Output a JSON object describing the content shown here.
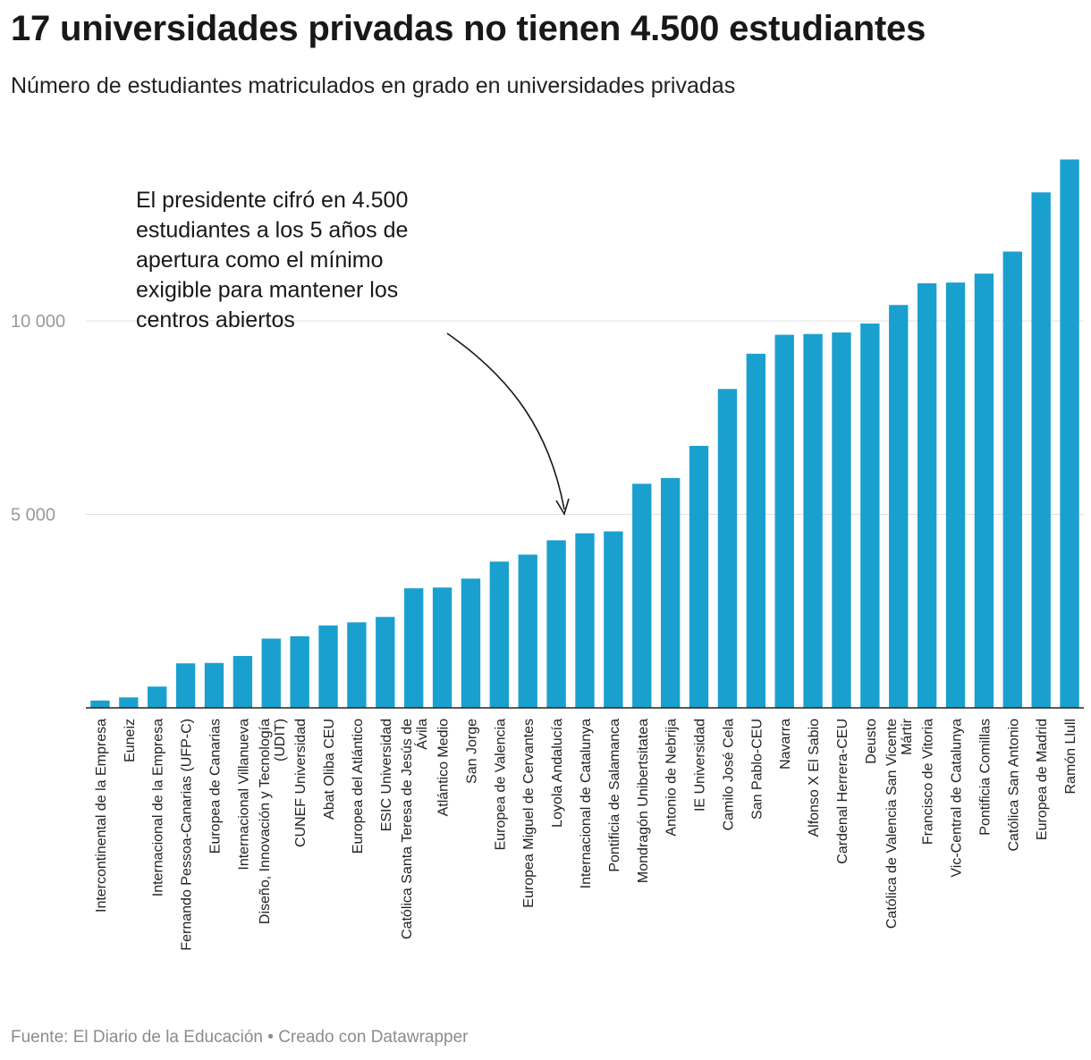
{
  "title": "17 universidades privadas no tienen 4.500 estudiantes",
  "subtitle": "Número de estudiantes matriculados en grado en universidades privadas",
  "footer": "Fuente: El Diario de la Educación • Creado con Datawrapper",
  "colors": {
    "bar": "#1aa0cf",
    "grid": "#e1e1e1",
    "axis": "#222222",
    "tick": "#9a9a9a"
  },
  "chart_data": {
    "type": "bar",
    "title": "17 universidades privadas no tienen 4.500 estudiantes",
    "xlabel": "",
    "ylabel": "",
    "ylim": [
      0,
      14700
    ],
    "grid": true,
    "yticks": [
      5000,
      10000
    ],
    "ytick_labels": [
      "5 000",
      "10 000"
    ],
    "categories": [
      [
        "Intercontinental de la Empresa"
      ],
      [
        "Euneiz"
      ],
      [
        "Internacional de la Empresa"
      ],
      [
        "Fernando Pessoa-Canarias (UFP-C)"
      ],
      [
        "Europea de Canarias"
      ],
      [
        "Internacional Villanueva"
      ],
      [
        "Diseño, Innovación y Tecnología",
        "(UDIT)"
      ],
      [
        "CUNEF Universidad"
      ],
      [
        "Abat Oliba CEU"
      ],
      [
        "Europea del Atlántico"
      ],
      [
        "ESIC Universidad"
      ],
      [
        "Católica Santa Teresa de Jesús de",
        "Ávila"
      ],
      [
        "Atlántico Medio"
      ],
      [
        "San Jorge"
      ],
      [
        "Europea de Valencia"
      ],
      [
        "Europea Miguel de Cervantes"
      ],
      [
        "Loyola Andalucía"
      ],
      [
        "Internacional de Catalunya"
      ],
      [
        "Pontificia de Salamanca"
      ],
      [
        "Mondragón Unibertsitatea"
      ],
      [
        "Antonio de Nebrija"
      ],
      [
        "IE Universidad"
      ],
      [
        "Camilo José Cela"
      ],
      [
        "San Pablo-CEU"
      ],
      [
        "Navarra"
      ],
      [
        "Alfonso X El Sabio"
      ],
      [
        "Cardenal Herrera-CEU"
      ],
      [
        "Deusto"
      ],
      [
        "Católica de Valencia San Vicente",
        "Mártir"
      ],
      [
        "Francisco de Vitoria"
      ],
      [
        "Vic-Central de Catalunya"
      ],
      [
        "Pontificia Comillas"
      ],
      [
        "Católica San Antonio"
      ],
      [
        "Europea de Madrid"
      ],
      [
        "Ramón Llull"
      ]
    ],
    "values": [
      190,
      270,
      550,
      1150,
      1160,
      1340,
      1790,
      1850,
      2130,
      2210,
      2350,
      3090,
      3110,
      3340,
      3780,
      3960,
      4330,
      4510,
      4560,
      5790,
      5940,
      6770,
      8240,
      9150,
      9640,
      9660,
      9700,
      9930,
      10410,
      10970,
      10990,
      11220,
      11790,
      13320,
      14170
    ],
    "annotation": {
      "lines": [
        "El presidente cifró en 4.500",
        "estudiantes a los 5 años de",
        "apertura como el mínimo",
        "exigible para mantener los",
        "centros abiertos"
      ]
    }
  }
}
